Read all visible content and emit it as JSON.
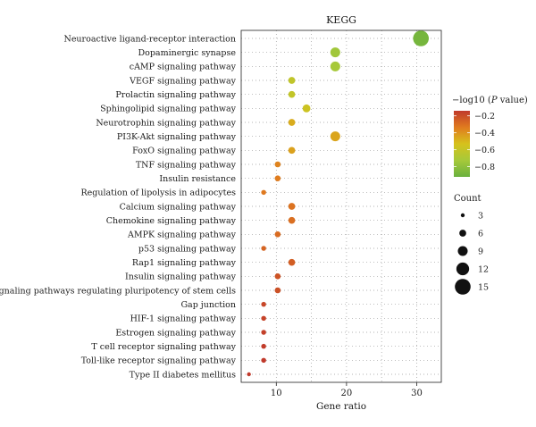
{
  "chart_data": {
    "type": "scatter",
    "title": "KEGG",
    "xlabel": "Gene ratio",
    "ylabel": "",
    "xlim": [
      5,
      33.5
    ],
    "x_ticks": [
      10,
      20,
      30
    ],
    "x_tick_labels": [
      "10",
      "20",
      "30"
    ],
    "grid": true,
    "categories": [
      "Neuroactive ligand-receptor interaction",
      "Dopaminergic synapse",
      "cAMP signaling pathway",
      "VEGF signaling pathway",
      "Prolactin signaling pathway",
      "Sphingolipid signaling pathway",
      "Neurotrophin signaling pathway",
      "PI3K-Akt signaling pathway",
      "FoxO signaling pathway",
      "TNF signaling pathway",
      "Insulin resistance",
      "Regulation of lipolysis in adipocytes",
      "Calcium signaling pathway",
      "Chemokine signaling pathway",
      "AMPK signaling pathway",
      "p53 signaling pathway",
      "Rap1 signaling pathway",
      "Insulin signaling pathway",
      "Signaling pathways regulating pluripotency of stem cells",
      "Gap junction",
      "HIF-1 signaling pathway",
      "Estrogen signaling pathway",
      "T cell receptor signaling pathway",
      "Toll-like receptor signaling pathway",
      "Type II diabetes mellitus"
    ],
    "gene_ratio": [
      30.6,
      18.4,
      18.4,
      12.2,
      12.2,
      14.3,
      12.2,
      18.4,
      12.2,
      10.2,
      10.2,
      8.2,
      12.2,
      12.2,
      10.2,
      8.2,
      12.2,
      10.2,
      10.2,
      8.2,
      8.2,
      8.2,
      8.2,
      8.2,
      6.1
    ],
    "count": [
      15,
      9,
      9,
      6,
      6,
      7,
      6,
      9,
      6,
      5,
      5,
      4,
      6,
      6,
      5,
      4,
      6,
      5,
      5,
      4,
      4,
      4,
      4,
      4,
      3
    ],
    "neg_log10_p": [
      -0.88,
      -0.74,
      -0.72,
      -0.62,
      -0.61,
      -0.57,
      -0.47,
      -0.45,
      -0.44,
      -0.36,
      -0.34,
      -0.33,
      -0.31,
      -0.3,
      -0.29,
      -0.27,
      -0.25,
      -0.22,
      -0.21,
      -0.18,
      -0.17,
      -0.16,
      -0.15,
      -0.14,
      -0.12
    ],
    "color_legend": {
      "title_prefix": "−log10 (",
      "title_italic": "P",
      "title_suffix": " value)",
      "range": [
        -0.92,
        -0.14
      ],
      "ticks": [
        -0.2,
        -0.4,
        -0.6,
        -0.8
      ],
      "tick_labels": [
        "−0.2",
        "−0.4",
        "−0.6",
        "−0.8"
      ],
      "colors": [
        "#c0392b",
        "#e07b1f",
        "#d6c21c",
        "#a6c93a",
        "#6ab13e"
      ]
    },
    "size_legend": {
      "title": "Count",
      "values": [
        3,
        6,
        9,
        12,
        15
      ],
      "labels": [
        "3",
        "6",
        "9",
        "12",
        "15"
      ]
    },
    "legend_position": "right"
  }
}
